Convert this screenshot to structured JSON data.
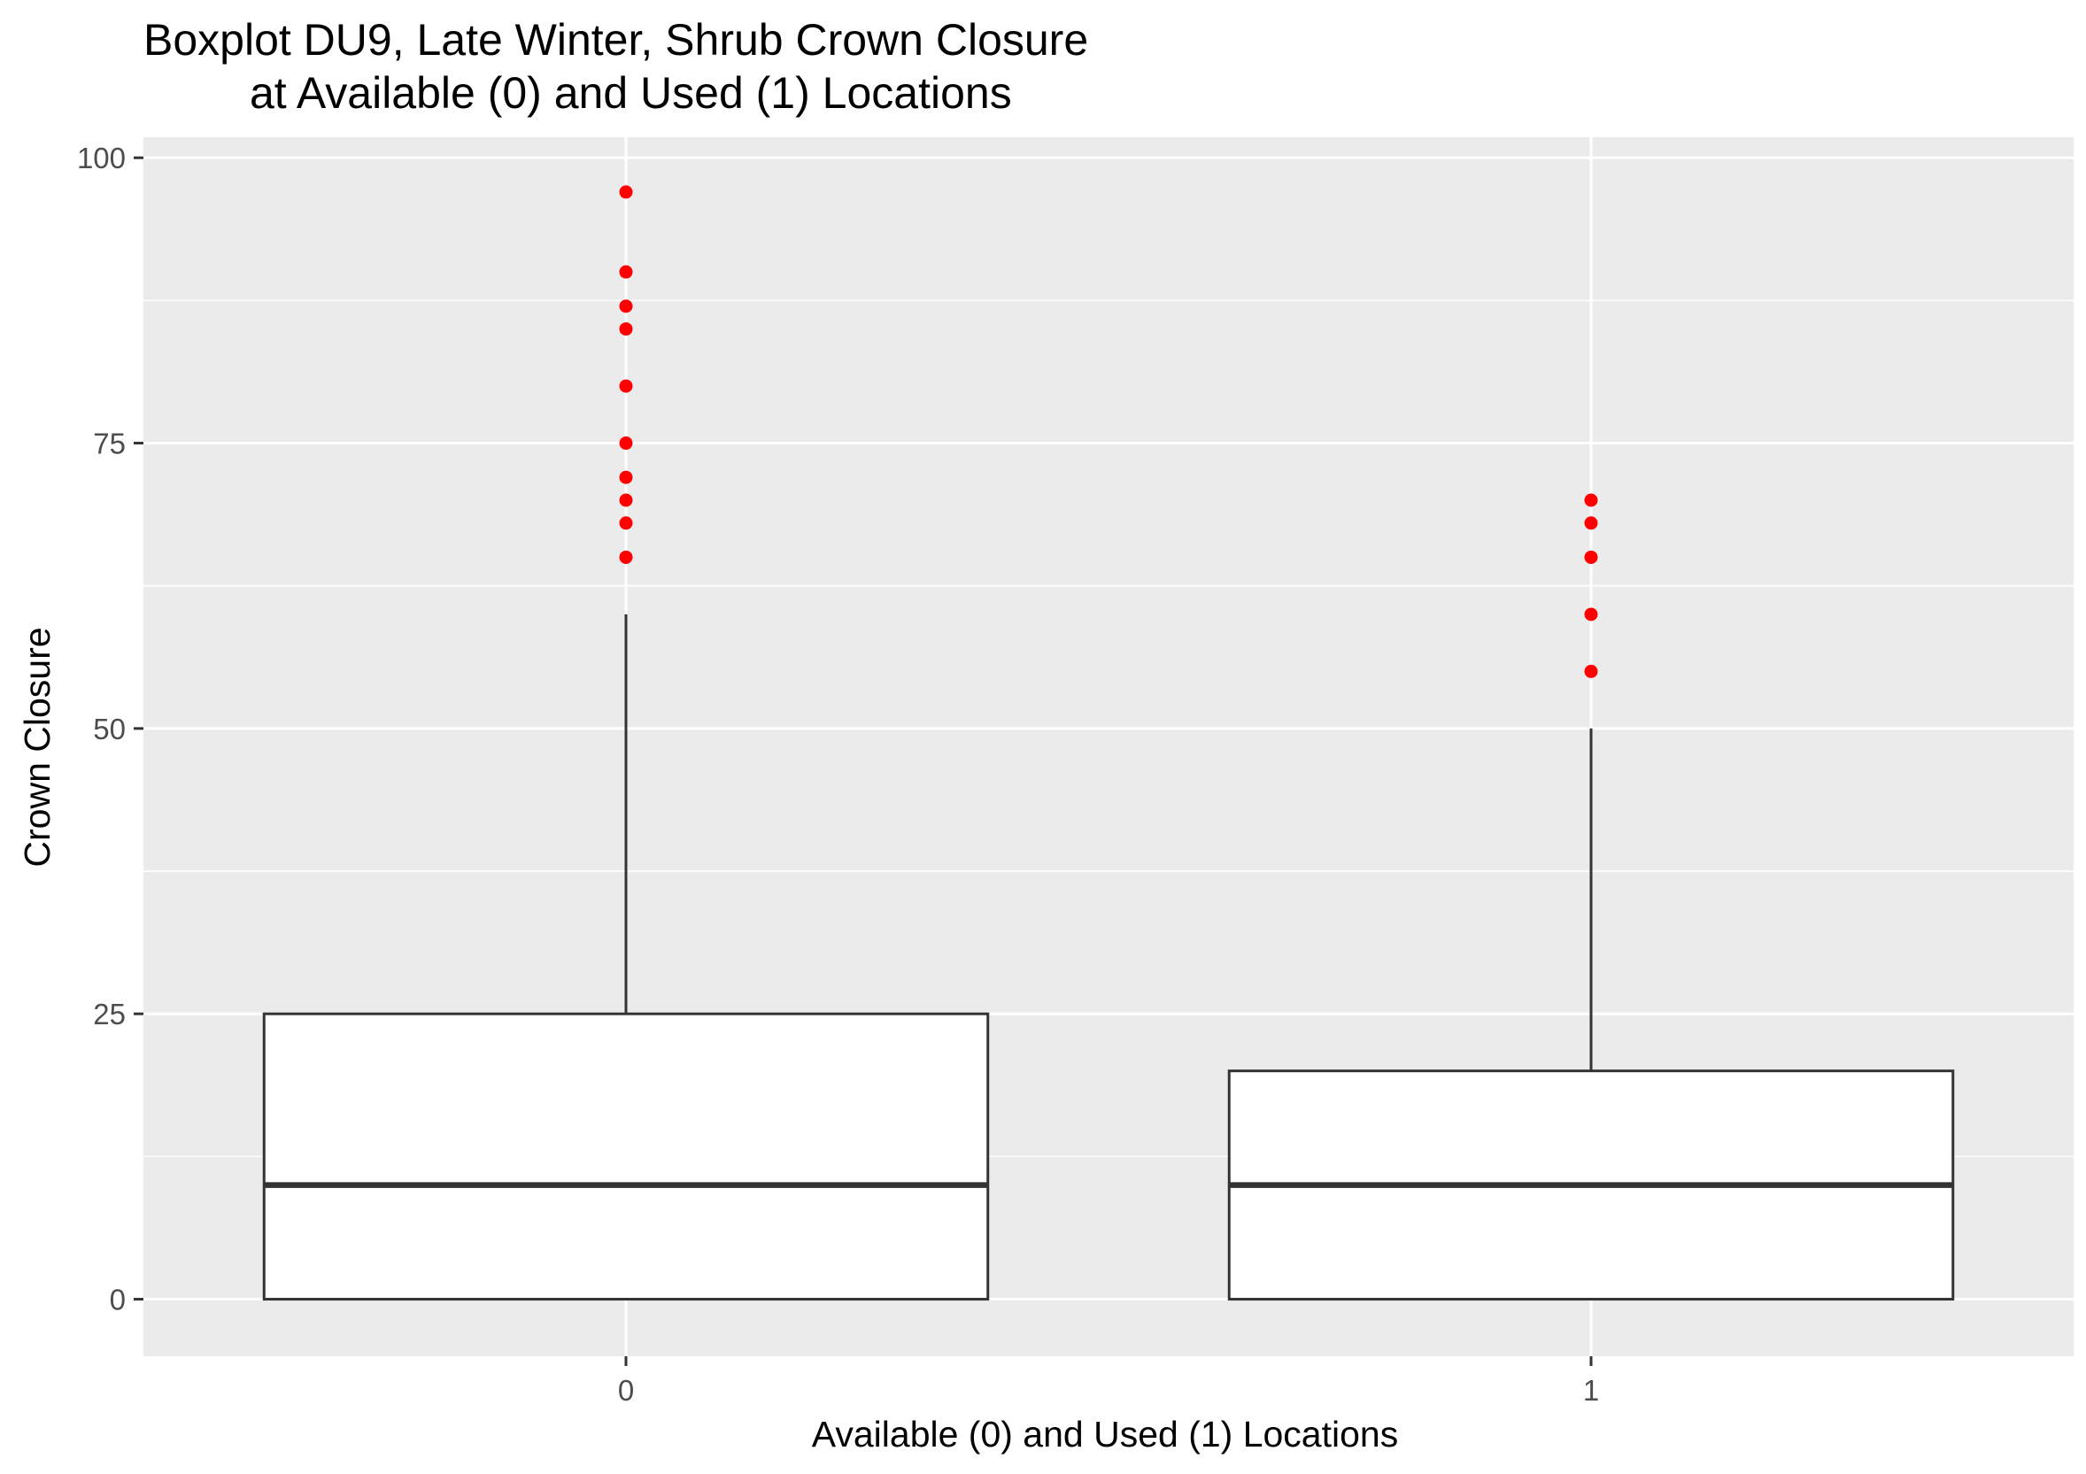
{
  "chart_data": {
    "type": "boxplot",
    "title": [
      "Boxplot DU9, Late Winter, Shrub Crown Closure",
      "at Available (0) and Used (1) Locations"
    ],
    "xlabel": "Available (0) and Used (1) Locations",
    "ylabel": "Crown Closure",
    "categories": [
      "0",
      "1"
    ],
    "ylim": [
      -5,
      101.8
    ],
    "y_ticks": [
      0,
      25,
      50,
      75,
      100
    ],
    "y_tick_labels": [
      "0",
      "25",
      "50",
      "75",
      "100"
    ],
    "grid": true,
    "boxes": [
      {
        "category": "0",
        "min": 0,
        "q1": 0,
        "median": 10,
        "q3": 25,
        "max": 60,
        "outliers": [
          65,
          68,
          70,
          72,
          75,
          80,
          85,
          87,
          90,
          97
        ]
      },
      {
        "category": "1",
        "min": 0,
        "q1": 0,
        "median": 10,
        "q3": 20,
        "max": 50,
        "outliers": [
          55,
          60,
          65,
          68,
          70
        ]
      }
    ],
    "colors": {
      "panel_background": "#ebebeb",
      "grid_line": "#ffffff",
      "box_fill": "#ffffff",
      "box_stroke": "#333333",
      "outlier": "#ff0000",
      "tick_text": "#4d4d4d"
    }
  }
}
